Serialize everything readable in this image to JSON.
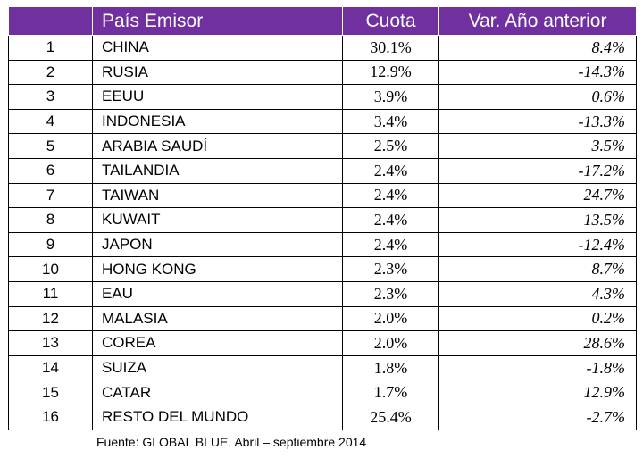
{
  "table": {
    "headers": {
      "rank": "",
      "country": "País Emisor",
      "share": "Cuota",
      "variation": "Var. Año anterior"
    },
    "rows": [
      {
        "rank": "1",
        "country": "CHINA",
        "share": "30.1%",
        "variation": "8.4%"
      },
      {
        "rank": "2",
        "country": "RUSIA",
        "share": "12.9%",
        "variation": "-14.3%"
      },
      {
        "rank": "3",
        "country": "EEUU",
        "share": "3.9%",
        "variation": "0.6%"
      },
      {
        "rank": "4",
        "country": "INDONESIA",
        "share": "3.4%",
        "variation": "-13.3%"
      },
      {
        "rank": "5",
        "country": "ARABIA SAUDÍ",
        "share": "2.5%",
        "variation": "3.5%"
      },
      {
        "rank": "6",
        "country": "TAILANDIA",
        "share": "2.4%",
        "variation": "-17.2%"
      },
      {
        "rank": "7",
        "country": "TAIWAN",
        "share": "2.4%",
        "variation": "24.7%"
      },
      {
        "rank": "8",
        "country": "KUWAIT",
        "share": "2.4%",
        "variation": "13.5%"
      },
      {
        "rank": "9",
        "country": "JAPON",
        "share": "2.4%",
        "variation": "-12.4%"
      },
      {
        "rank": "10",
        "country": "HONG KONG",
        "share": "2.3%",
        "variation": "8.7%"
      },
      {
        "rank": "11",
        "country": "EAU",
        "share": "2.3%",
        "variation": "4.3%"
      },
      {
        "rank": "12",
        "country": "MALASIA",
        "share": "2.0%",
        "variation": "0.2%"
      },
      {
        "rank": "13",
        "country": "COREA",
        "share": "2.0%",
        "variation": "28.6%"
      },
      {
        "rank": "14",
        "country": "SUIZA",
        "share": "1.8%",
        "variation": "-1.8%"
      },
      {
        "rank": "15",
        "country": "CATAR",
        "share": "1.7%",
        "variation": "12.9%"
      },
      {
        "rank": "16",
        "country": "RESTO DEL MUNDO",
        "share": "25.4%",
        "variation": "-2.7%"
      }
    ]
  },
  "source": "Fuente: GLOBAL BLUE. Abril – septiembre 2014",
  "colors": {
    "header_background": "#7030a0",
    "header_text": "#ffffff"
  }
}
